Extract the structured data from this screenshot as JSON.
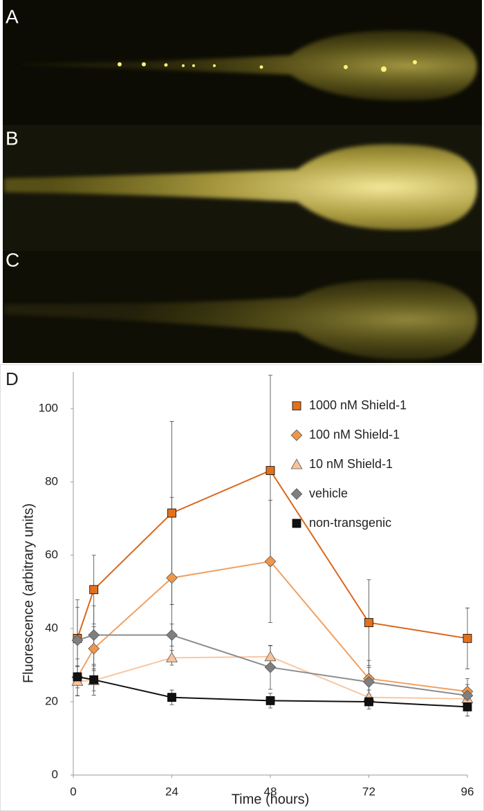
{
  "panel_labels": [
    "A",
    "B",
    "C"
  ],
  "chart_data": {
    "type": "line",
    "panel_label": "D",
    "x_label": "Time (hours)",
    "y_label": "Fluorescence (arbitrary units)",
    "x": [
      1,
      5,
      24,
      48,
      72,
      96
    ],
    "xlim": [
      0,
      96
    ],
    "xticks": [
      0,
      24,
      48,
      72,
      96
    ],
    "ylim": [
      0,
      110
    ],
    "yticks": [
      0,
      20,
      40,
      60,
      80,
      100
    ],
    "legend": "upper right",
    "series": [
      {
        "name": "1000 nM Shield-1",
        "color": "#e2711d",
        "line_color": "#d9661a",
        "marker": "square",
        "values": [
          37.3,
          50.6,
          71.5,
          83.1,
          41.6,
          37.3
        ],
        "errors": [
          10.5,
          9.4,
          25,
          26,
          11.7,
          8.3
        ]
      },
      {
        "name": "100 nM Shield-1",
        "color": "#f0964a",
        "line_color": "#f1a060",
        "marker": "diamond",
        "values": [
          26.7,
          34.5,
          53.8,
          58.3,
          26.3,
          22.8
        ],
        "errors": [
          5,
          6,
          22,
          16.7,
          5,
          3.5
        ]
      },
      {
        "name": "10 nM Shield-1",
        "color": "#f8c39c",
        "line_color": "#f8c7a3",
        "marker": "triangle",
        "values": [
          25.6,
          25.8,
          32.0,
          32.3,
          21.2,
          20.8
        ],
        "errors": [
          4,
          4,
          2,
          3,
          2,
          2
        ]
      },
      {
        "name": "vehicle",
        "color": "#7f7f7f",
        "line_color": "#8c8c8c",
        "marker": "diamond",
        "values": [
          36.8,
          38.2,
          38.2,
          29.4,
          25.4,
          21.7
        ],
        "errors": [
          9,
          8,
          3,
          6,
          4,
          3
        ]
      },
      {
        "name": "non-transgenic",
        "color": "#111111",
        "line_color": "#111111",
        "marker": "square",
        "values": [
          26.8,
          26.0,
          21.2,
          20.3,
          20.0,
          18.6
        ],
        "errors": [
          3,
          3,
          2,
          2,
          2,
          2.5
        ]
      }
    ]
  }
}
